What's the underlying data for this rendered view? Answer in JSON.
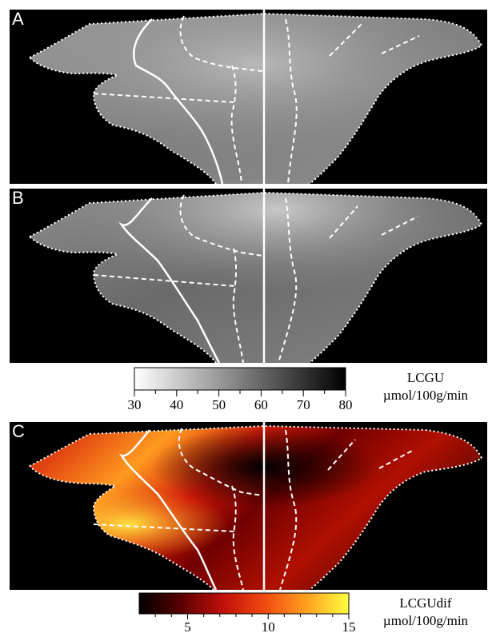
{
  "panels": [
    {
      "letter": "A",
      "description_style": "grayscale"
    },
    {
      "letter": "B",
      "description_style": "grayscale"
    },
    {
      "letter": "C",
      "description_style": "heat"
    }
  ],
  "colorbar_gray": {
    "ticks": [
      "30",
      "40",
      "50",
      "60",
      "70",
      "80"
    ],
    "min": 30,
    "max": 80,
    "unit_line1": "LCGU",
    "unit_line2": "µmol/100g/min",
    "color_low": "#ffffff",
    "color_high": "#000000"
  },
  "colorbar_heat": {
    "ticks": [
      "5",
      "10",
      "15"
    ],
    "min": 2,
    "max": 15,
    "unit_line1": "LCGUdif",
    "unit_line2": "µmol/100g/min",
    "stops": [
      "#000000",
      "#5a0000",
      "#c0100a",
      "#f04a10",
      "#ffa020",
      "#ffff40"
    ]
  }
}
